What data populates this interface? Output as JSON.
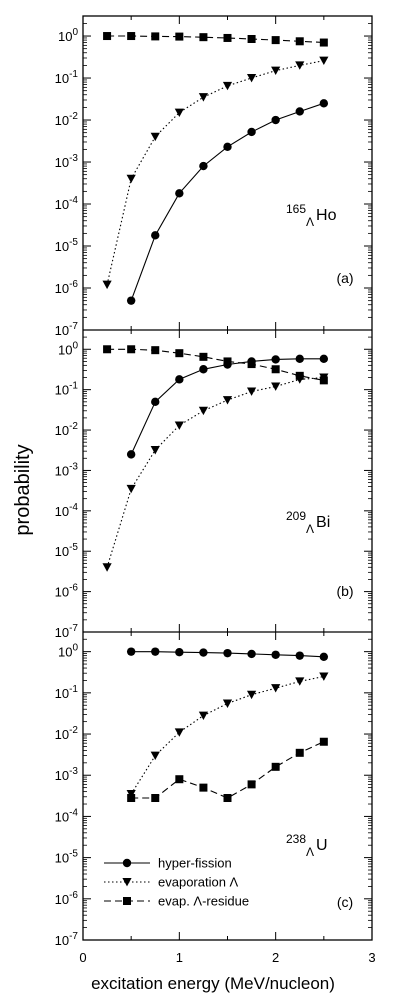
{
  "chart_data": {
    "type": "line",
    "scale": "log-y",
    "xlabel": "excitation energy (MeV/nucleon)",
    "ylabel": "probability",
    "xlim": [
      0,
      3
    ],
    "ylim": [
      1e-07,
      3
    ],
    "xticks": [
      "0",
      "1",
      "2",
      "3"
    ],
    "yticks": [
      "10-7",
      "10-6",
      "10-5",
      "10-4",
      "10-3",
      "10-2",
      "10-1",
      "100"
    ],
    "legend": {
      "location": "lower-left of panel (c)",
      "entries": [
        "hyper-fission",
        "evaporation Λ",
        "evap. Λ-residue"
      ]
    },
    "series_styles": [
      {
        "name": "hyper-fission",
        "marker": "circle",
        "line": "solid"
      },
      {
        "name": "evaporation Λ",
        "marker": "triangle-down",
        "line": "dotted"
      },
      {
        "name": "evap. Λ-residue",
        "marker": "square",
        "line": "dashed"
      }
    ],
    "panels": [
      {
        "tag": "(a)",
        "nucleus": {
          "mass": "165",
          "sub": "Λ",
          "symbol": "Ho"
        },
        "series": [
          {
            "name": "hyper-fission",
            "x": [
              0.5,
              0.75,
              1.0,
              1.25,
              1.5,
              1.75,
              2.0,
              2.25,
              2.5
            ],
            "y": [
              5e-07,
              1.8e-05,
              0.00018,
              0.0008,
              0.0023,
              0.0052,
              0.01,
              0.016,
              0.025
            ]
          },
          {
            "name": "evaporation Λ",
            "x": [
              0.25,
              0.5,
              0.75,
              1.0,
              1.25,
              1.5,
              1.75,
              2.0,
              2.25,
              2.5
            ],
            "y": [
              1.2e-06,
              0.0004,
              0.004,
              0.015,
              0.035,
              0.065,
              0.1,
              0.15,
              0.2,
              0.26
            ]
          },
          {
            "name": "evap. Λ-residue",
            "x": [
              0.25,
              0.5,
              0.75,
              1.0,
              1.25,
              1.5,
              1.75,
              2.0,
              2.25,
              2.5
            ],
            "y": [
              1.0,
              1.0,
              0.98,
              0.97,
              0.94,
              0.9,
              0.85,
              0.8,
              0.75,
              0.7
            ]
          }
        ]
      },
      {
        "tag": "(b)",
        "nucleus": {
          "mass": "209",
          "sub": "Λ",
          "symbol": "Bi"
        },
        "series": [
          {
            "name": "hyper-fission",
            "x": [
              0.5,
              0.75,
              1.0,
              1.25,
              1.5,
              1.75,
              2.0,
              2.25,
              2.5
            ],
            "y": [
              0.0025,
              0.05,
              0.18,
              0.32,
              0.42,
              0.5,
              0.56,
              0.58,
              0.58
            ]
          },
          {
            "name": "evaporation Λ",
            "x": [
              0.25,
              0.5,
              0.75,
              1.0,
              1.25,
              1.5,
              1.75,
              2.0,
              2.25,
              2.5
            ],
            "y": [
              4e-06,
              0.00035,
              0.0032,
              0.013,
              0.03,
              0.055,
              0.09,
              0.12,
              0.18,
              0.2
            ]
          },
          {
            "name": "evap. Λ-residue",
            "x": [
              0.25,
              0.5,
              0.75,
              1.0,
              1.25,
              1.5,
              1.75,
              2.0,
              2.25,
              2.5
            ],
            "y": [
              1.0,
              1.0,
              0.95,
              0.8,
              0.65,
              0.5,
              0.43,
              0.32,
              0.22,
              0.17
            ]
          }
        ]
      },
      {
        "tag": "(c)",
        "nucleus": {
          "mass": "238",
          "sub": "Λ",
          "symbol": "U"
        },
        "series": [
          {
            "name": "hyper-fission",
            "x": [
              0.5,
              0.75,
              1.0,
              1.25,
              1.5,
              1.75,
              2.0,
              2.25,
              2.5
            ],
            "y": [
              1.0,
              1.0,
              0.97,
              0.95,
              0.92,
              0.88,
              0.84,
              0.8,
              0.75
            ]
          },
          {
            "name": "evaporation Λ",
            "x": [
              0.5,
              0.75,
              1.0,
              1.25,
              1.5,
              1.75,
              2.0,
              2.25,
              2.5
            ],
            "y": [
              0.00035,
              0.003,
              0.011,
              0.028,
              0.055,
              0.09,
              0.13,
              0.19,
              0.25
            ]
          },
          {
            "name": "evap. Λ-residue",
            "x": [
              0.5,
              0.75,
              1.0,
              1.25,
              1.5,
              1.75,
              2.0,
              2.25,
              2.5
            ],
            "y": [
              0.00028,
              0.00028,
              0.0008,
              0.0005,
              0.00028,
              0.0006,
              0.0016,
              0.0035,
              0.0065
            ]
          }
        ]
      }
    ]
  }
}
